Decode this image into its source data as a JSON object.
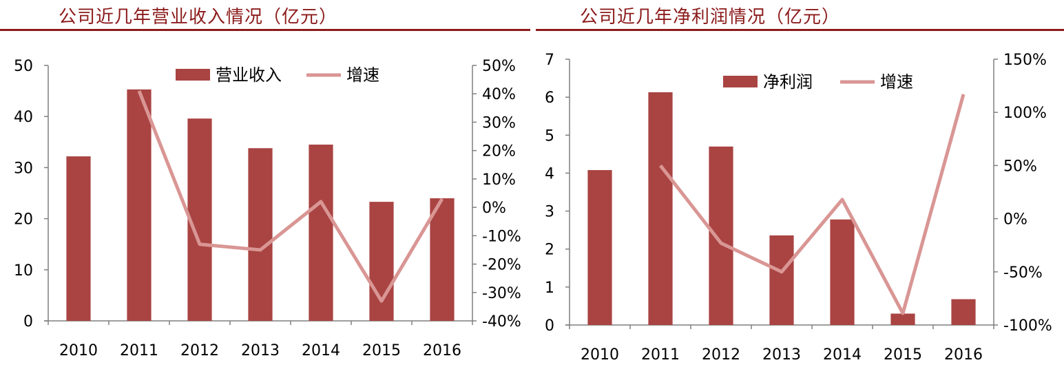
{
  "left_title": "公司近几年营业收入情况（亿元）",
  "right_title": "公司近几年净利润情况（亿元）",
  "colors": {
    "bar": "#a94442",
    "line": "#d99694",
    "title": "#8b1a1a",
    "axis": "#7f7f7f"
  },
  "chart_data": [
    {
      "type": "bar",
      "categories": [
        "2010",
        "2011",
        "2012",
        "2013",
        "2014",
        "2015",
        "2016"
      ],
      "series": [
        {
          "name": "营业收入",
          "type": "bar",
          "axis": "left",
          "values": [
            32.2,
            45.3,
            39.6,
            33.8,
            34.5,
            23.3,
            24.0
          ]
        },
        {
          "name": "增速",
          "type": "line",
          "axis": "right",
          "values": [
            null,
            41,
            -13,
            -15,
            2,
            -33,
            3
          ]
        }
      ],
      "ylim": [
        0,
        50
      ],
      "yticks": [
        0,
        10,
        20,
        30,
        40,
        50
      ],
      "y2lim": [
        -40,
        50
      ],
      "y2ticks": [
        -40,
        -30,
        -20,
        -10,
        0,
        10,
        20,
        30,
        40,
        50
      ],
      "y2tick_suffix": "%",
      "legend": "top-center",
      "grid": false
    },
    {
      "type": "bar",
      "categories": [
        "2010",
        "2011",
        "2012",
        "2013",
        "2014",
        "2015",
        "2016"
      ],
      "series": [
        {
          "name": "净利润",
          "type": "bar",
          "axis": "left",
          "values": [
            4.08,
            6.13,
            4.7,
            2.36,
            2.78,
            0.3,
            0.68
          ]
        },
        {
          "name": "增速",
          "type": "line",
          "axis": "right",
          "values": [
            null,
            50,
            -23,
            -50,
            18,
            -89,
            117
          ]
        }
      ],
      "ylim": [
        0,
        7
      ],
      "yticks": [
        0,
        1,
        2,
        3,
        4,
        5,
        6,
        7
      ],
      "y2lim": [
        -100,
        150
      ],
      "y2ticks": [
        -100,
        -50,
        0,
        50,
        100,
        150
      ],
      "y2tick_suffix": "%",
      "legend": "top-center",
      "grid": false
    }
  ]
}
